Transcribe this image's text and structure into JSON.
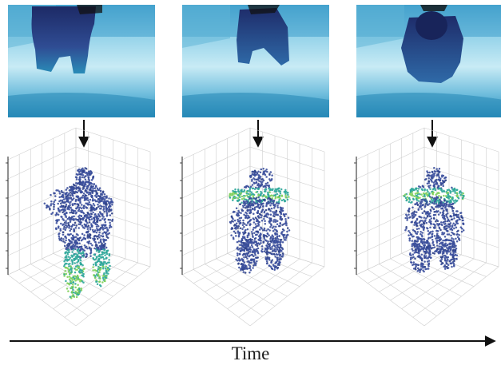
{
  "figure": {
    "time_label": "Time",
    "frame_count": 3,
    "colors": {
      "depth_far": "#eaf6fb",
      "depth_mid": "#7cc4e0",
      "depth_near": "#1e7fb0",
      "person_dark": "#2a3f88",
      "person_head": "#1a2a5e",
      "point_base": "#3b4f9c",
      "point_hot_teal": "#2fa79a",
      "point_hot_green": "#7fd05a",
      "arrow": "#111111",
      "grid": "#cfcfcf"
    },
    "frames": [
      {
        "highlight_region": "legs"
      },
      {
        "highlight_region": "shoulders"
      },
      {
        "highlight_region": "shoulders"
      }
    ]
  }
}
